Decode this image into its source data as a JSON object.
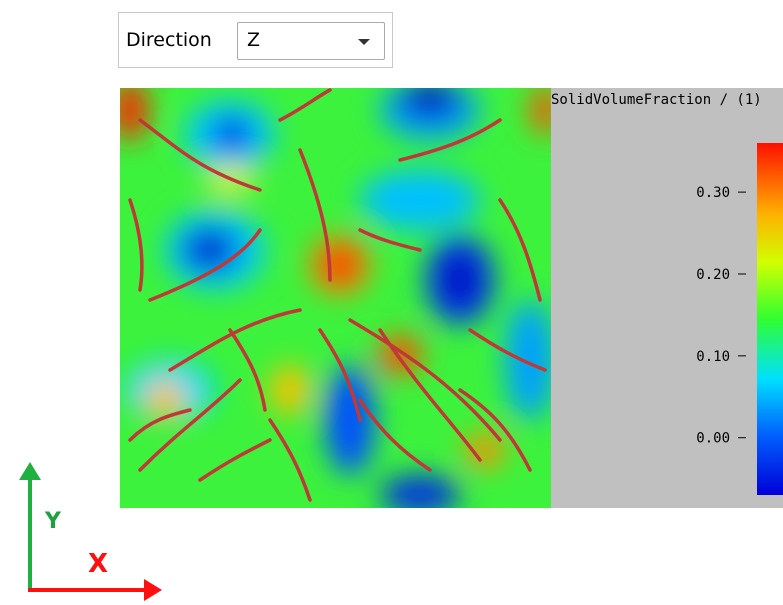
{
  "toolbar": {
    "label": "Direction",
    "selected": "Z"
  },
  "colorbar": {
    "title": "SolidVolumeFraction / (1)",
    "lim": [
      -0.07,
      0.36
    ],
    "ticks": [
      {
        "value": 0.3,
        "label": "0.30"
      },
      {
        "value": 0.2,
        "label": "0.20"
      },
      {
        "value": 0.1,
        "label": "0.10"
      },
      {
        "value": 0,
        "label": "0.00"
      }
    ]
  },
  "axes": {
    "y": "Y",
    "x": "X"
  }
}
